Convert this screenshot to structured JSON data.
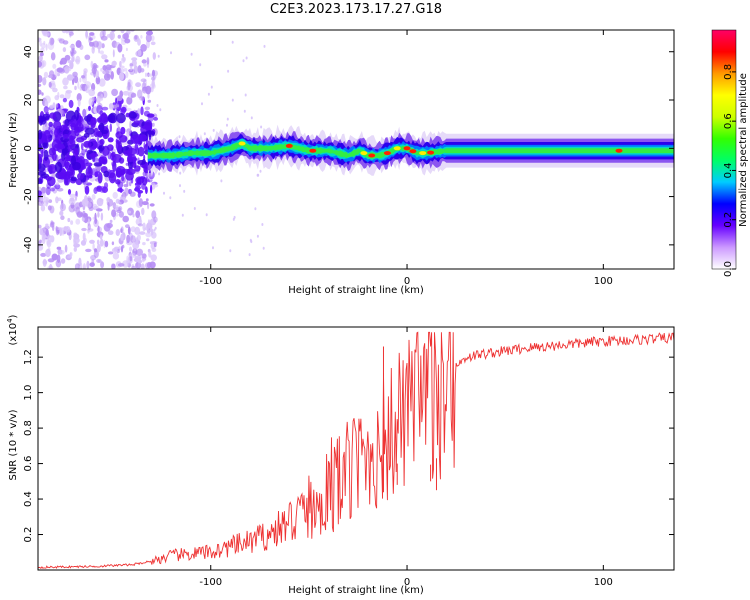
{
  "title": "C2E3.2023.173.17.27.G18",
  "chart_data": [
    {
      "type": "heatmap",
      "xlabel": "Height of straight line (km)",
      "ylabel": "Frequency (Hz)",
      "xlim": [
        -188,
        136
      ],
      "ylim": [
        -50,
        49
      ],
      "xticks": [
        -100,
        0,
        100
      ],
      "xtick_labels": [
        "-100",
        "0",
        "100"
      ],
      "yticks": [
        -40,
        -20,
        0,
        20,
        40
      ],
      "ytick_labels": [
        "-40",
        "-20",
        "0",
        "20",
        "40"
      ],
      "colorbar": {
        "label": "Normalized spectral amplitude",
        "range": [
          0,
          0.97
        ],
        "ticks": [
          0,
          0.2,
          0.4,
          0.6,
          0.8
        ],
        "tick_labels": [
          "0.0",
          "0.2",
          "0.4",
          "0.6",
          "0.8"
        ],
        "colormap": [
          "#ffffff",
          "#cc99ff",
          "#6600ff",
          "#0000ff",
          "#00ccff",
          "#00ff66",
          "#33ff00",
          "#ccff00",
          "#ffff00",
          "#ff9900",
          "#ff0000",
          "#ff0066"
        ]
      },
      "ridge": {
        "x": [
          -130,
          -120,
          -110,
          -100,
          -90,
          -84,
          -80,
          -70,
          -60,
          -50,
          -40,
          -30,
          -24,
          -20,
          -14,
          -10,
          -5,
          0,
          5,
          10,
          20,
          40,
          60,
          80,
          100,
          110,
          120,
          136
        ],
        "y": [
          -3,
          -3,
          -2,
          -2,
          0,
          2,
          0,
          0,
          1,
          -1,
          -1,
          -3,
          -1,
          -3,
          -3,
          -2,
          0,
          0,
          -2,
          -2,
          -1,
          -1,
          -1,
          -1,
          -1,
          -1,
          -1,
          -1
        ]
      }
    },
    {
      "type": "line",
      "xlabel": "Height of straight line (km)",
      "ylabel": "SNR (10 * v/v)",
      "scale_label": "(x10",
      "scale_exponent": "4",
      "xlim": [
        -188,
        136
      ],
      "ylim": [
        0,
        1.37
      ],
      "xticks": [
        -100,
        0,
        100
      ],
      "xtick_labels": [
        "-100",
        "0",
        "100"
      ],
      "yticks": [
        0.2,
        0.4,
        0.6,
        0.8,
        1.0,
        1.2
      ],
      "ytick_labels": [
        "0.2",
        "0.4",
        "0.6",
        "0.8",
        "1.0",
        "1.2"
      ],
      "line_color": "#ee3333",
      "envelope": {
        "x": [
          -188,
          -160,
          -140,
          -130,
          -120,
          -110,
          -100,
          -90,
          -80,
          -70,
          -60,
          -50,
          -40,
          -30,
          -20,
          -15,
          -10,
          -5,
          0,
          5,
          10,
          15,
          20,
          25,
          30,
          40,
          60,
          80,
          100,
          120,
          136
        ],
        "y": [
          0.015,
          0.02,
          0.03,
          0.05,
          0.08,
          0.09,
          0.1,
          0.13,
          0.16,
          0.2,
          0.27,
          0.35,
          0.45,
          0.55,
          0.65,
          0.7,
          0.75,
          0.8,
          0.85,
          0.88,
          0.95,
          1.05,
          1.12,
          1.15,
          1.2,
          1.22,
          1.25,
          1.27,
          1.29,
          1.3,
          1.31
        ]
      },
      "spikes": [
        {
          "x": -12,
          "y": 1.26
        },
        {
          "x": 15,
          "y": 0.45
        },
        {
          "x": 12,
          "y": 0.5
        },
        {
          "x": -5,
          "y": 0.6
        }
      ]
    }
  ]
}
